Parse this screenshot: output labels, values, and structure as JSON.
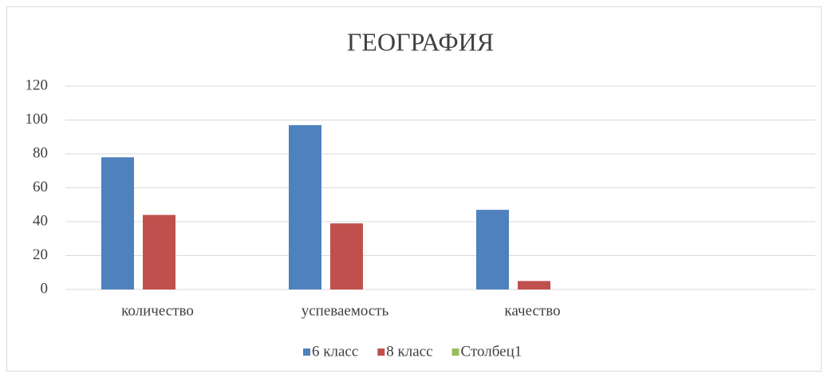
{
  "chart_data": {
    "type": "bar",
    "title": "ГЕОГРАФИЯ",
    "categories": [
      "количество",
      "успеваемость",
      "качество",
      null
    ],
    "series": [
      {
        "name": "6 класс",
        "color": "#4f81bd",
        "values": [
          78,
          97,
          47,
          null
        ]
      },
      {
        "name": "8 класс",
        "color": "#c0504d",
        "values": [
          44,
          39,
          5,
          null
        ]
      },
      {
        "name": "Столбец1",
        "color": "#9bbb59",
        "values": [
          null,
          null,
          null,
          null
        ]
      }
    ],
    "ylim": [
      0,
      120
    ],
    "yticks": [
      0,
      20,
      40,
      60,
      80,
      100,
      120
    ],
    "grid": true,
    "legend": "bottom"
  }
}
